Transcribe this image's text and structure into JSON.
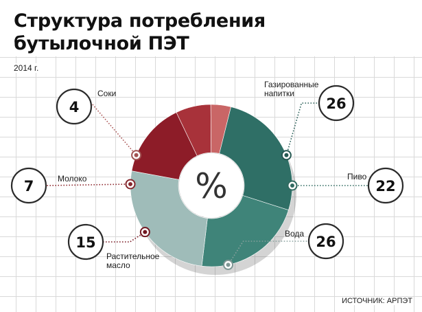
{
  "header": {
    "title_line1": "Структура потребления",
    "title_line2": "бутылочной ПЭТ",
    "year": "2014 г.",
    "source": "ИСТОЧНИК: АРПЭТ"
  },
  "chart_data": {
    "type": "pie",
    "center_label": "%",
    "categories": [
      "Газированные напитки",
      "Пиво",
      "Вода",
      "Растительное масло",
      "Молоко",
      "Соки"
    ],
    "values": [
      26,
      22,
      26,
      15,
      7,
      4
    ],
    "colors": [
      "#2f6f66",
      "#3f8479",
      "#9fbcb9",
      "#8d1c28",
      "#a8323a",
      "#c96666"
    ],
    "label_lines": [
      [
        "Газированные",
        "напитки"
      ],
      [
        "Пиво"
      ],
      [
        "Вода"
      ],
      [
        "Растительное",
        "масло"
      ],
      [
        "Молоко"
      ],
      [
        "Соки"
      ]
    ]
  }
}
